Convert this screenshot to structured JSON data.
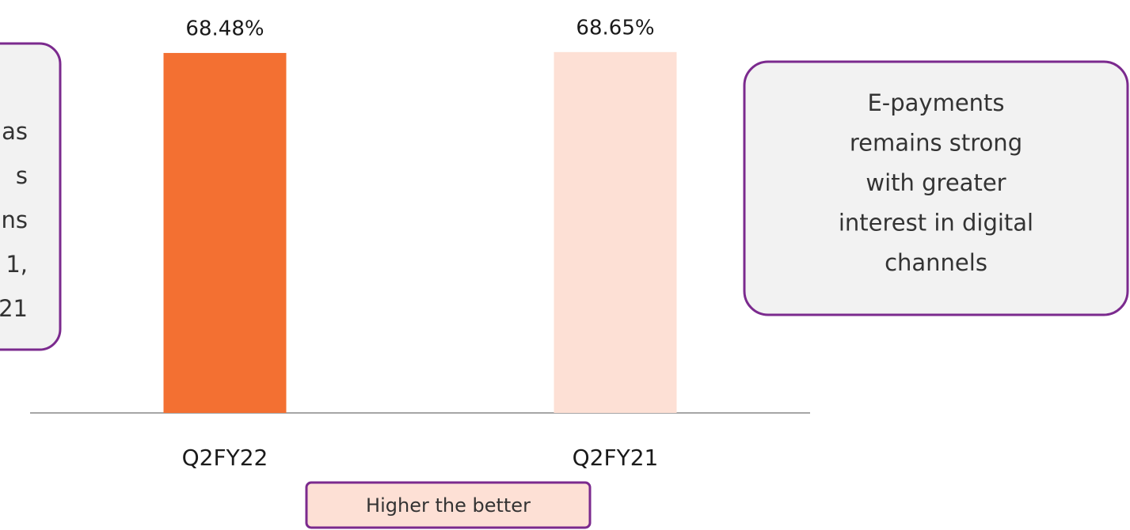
{
  "chart_data": {
    "type": "bar",
    "categories": [
      "Q2FY22",
      "Q2FY21"
    ],
    "values": [
      68.48,
      68.65
    ],
    "value_labels": [
      "68.48%",
      "68.65%"
    ],
    "colors": [
      "#f37032",
      "#fde0d5"
    ],
    "annotations": {
      "left": [
        "as",
        "s",
        "ns",
        "1,",
        "21"
      ],
      "right": [
        "E-payments",
        "remains strong",
        "with greater",
        "interest in digital",
        "channels"
      ],
      "bottom": "Higher the better"
    }
  }
}
